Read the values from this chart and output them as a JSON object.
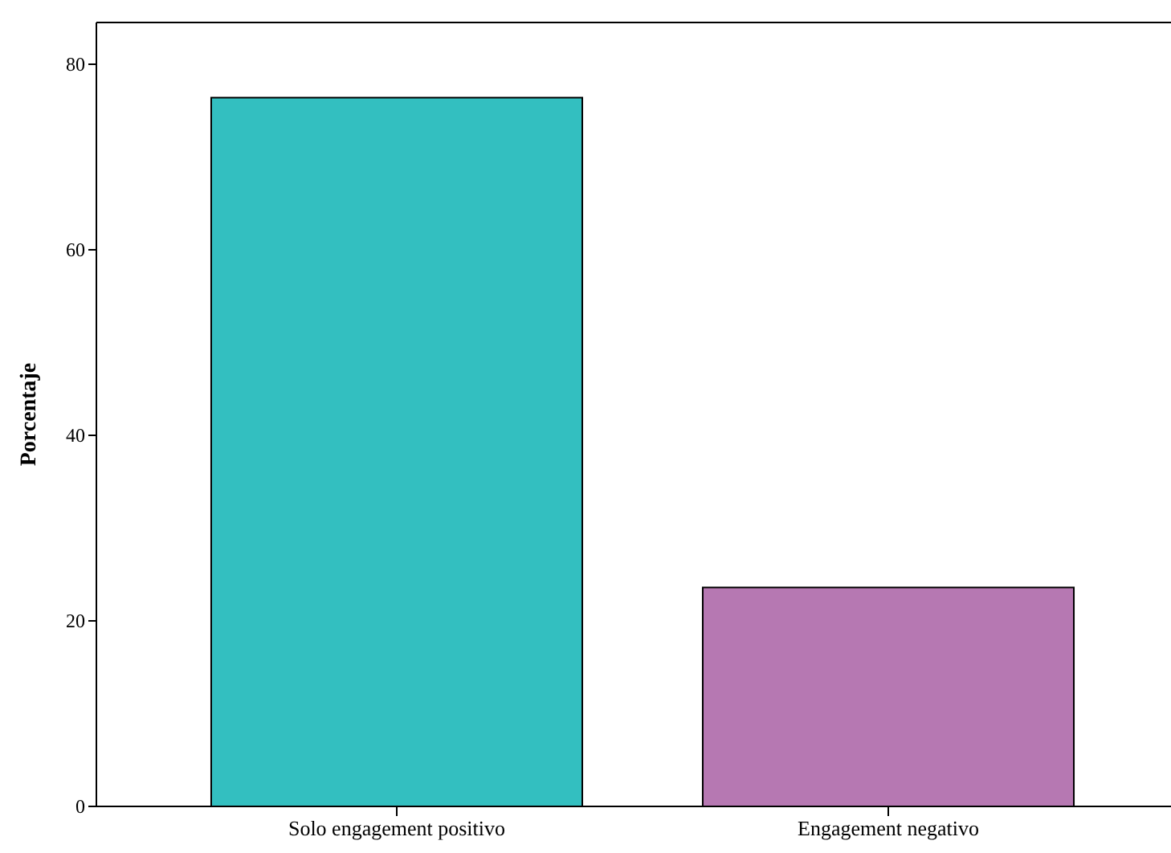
{
  "chart_data": {
    "type": "bar",
    "ylabel": "Porcentaje",
    "categories": [
      "Solo engagement positivo",
      "Engagement negativo"
    ],
    "values": [
      76.4,
      23.6
    ],
    "colors": [
      "#33bfc0",
      "#b678b2"
    ],
    "ylim": [
      0,
      84.5
    ],
    "yticks": [
      0,
      20,
      40,
      60,
      80
    ],
    "grid": false
  }
}
